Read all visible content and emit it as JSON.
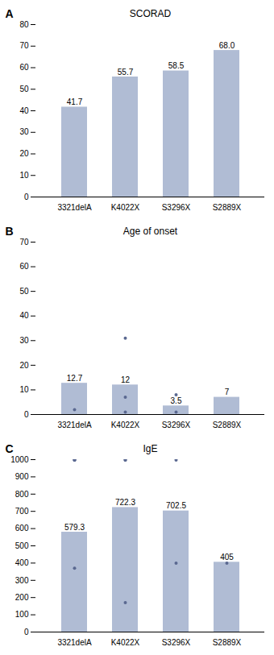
{
  "chart_data": [
    {
      "type": "bar",
      "title": "SCORAD",
      "annotations": [
        "A"
      ],
      "categories": [
        "3321delA",
        "K4022X",
        "S3296X",
        "S2889X"
      ],
      "series": [
        {
          "type": "bar",
          "color": "#b0bcd4",
          "values": [
            41.7,
            55.7,
            58.5,
            68.0
          ],
          "value_labels": [
            "41.7",
            "55.7",
            "58.5",
            "68.0"
          ],
          "data_labels": true
        }
      ],
      "ylim": [
        0,
        80
      ],
      "yticks": [
        0,
        10,
        20,
        30,
        40,
        50,
        60,
        70,
        80
      ],
      "grid": false
    },
    {
      "type": "bar",
      "title": "Age of onset",
      "annotations": [
        "B"
      ],
      "categories": [
        "3321delA",
        "K4022X",
        "S3296X",
        "S2889X"
      ],
      "series": [
        {
          "type": "bar",
          "color": "#b0bcd4",
          "values": [
            12.7,
            12,
            3.5,
            7
          ],
          "value_labels": [
            "12.7",
            "12",
            "3.5",
            "7"
          ],
          "data_labels": true
        },
        {
          "type": "scatter",
          "color": "#5a6890",
          "x": [
            "3321delA",
            "K4022X",
            "K4022X",
            "K4022X",
            "S3296X",
            "S3296X"
          ],
          "values": [
            2,
            7,
            1,
            31,
            8,
            1
          ]
        }
      ],
      "ylim": [
        0,
        70
      ],
      "yticks": [
        0,
        10,
        20,
        30,
        40,
        50,
        60,
        70
      ],
      "grid": false
    },
    {
      "type": "bar",
      "title": "IgE",
      "annotations": [
        "C"
      ],
      "categories": [
        "3321delA",
        "K4022X",
        "S3296X",
        "S2889X"
      ],
      "series": [
        {
          "type": "bar",
          "color": "#b0bcd4",
          "values": [
            579.3,
            722.3,
            702.5,
            405
          ],
          "value_labels": [
            "579.3",
            "722.3",
            "702.5",
            "405"
          ],
          "data_labels": true
        },
        {
          "type": "scatter",
          "color": "#5a6890",
          "x": [
            "3321delA",
            "3321delA",
            "3321delA",
            "3321delA",
            "K4022X",
            "K4022X",
            "K4022X",
            "S3296X",
            "S3296X",
            "S2889X"
          ],
          "values": [
            370,
            998,
            998,
            998,
            170,
            998,
            998,
            400,
            998,
            400
          ]
        }
      ],
      "ylim": [
        0,
        1000
      ],
      "yticks": [
        0,
        100,
        200,
        300,
        400,
        500,
        600,
        700,
        800,
        900,
        1000
      ],
      "grid": false
    }
  ]
}
